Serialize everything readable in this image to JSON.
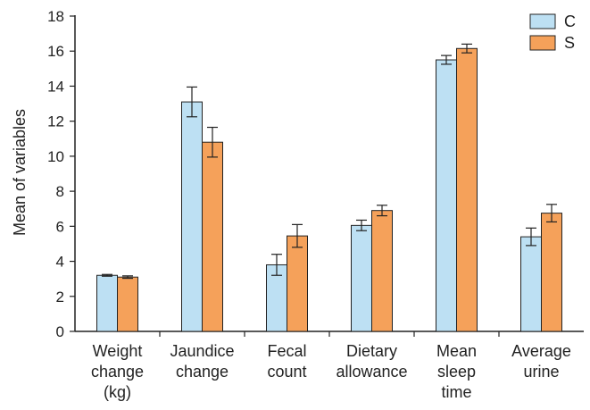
{
  "chart_data": {
    "type": "bar",
    "ylabel": "Mean of variables",
    "ylim": [
      0,
      18
    ],
    "yticks": [
      0,
      2,
      4,
      6,
      8,
      10,
      12,
      14,
      16,
      18
    ],
    "categories": [
      [
        "Weight",
        "change",
        "(kg)"
      ],
      [
        "Jaundice",
        "change"
      ],
      [
        "Fecal",
        "count"
      ],
      [
        "Dietary",
        "allowance"
      ],
      [
        "Mean",
        "sleep",
        "time"
      ],
      [
        "Average",
        "urine"
      ]
    ],
    "series": [
      {
        "name": "C",
        "color": "#bde0f3",
        "values": [
          3.2,
          13.1,
          3.8,
          6.05,
          15.5,
          5.4
        ],
        "errors": [
          0.05,
          0.85,
          0.6,
          0.3,
          0.25,
          0.5
        ]
      },
      {
        "name": "S",
        "color": "#f5a15a",
        "values": [
          3.1,
          10.8,
          5.45,
          6.9,
          16.15,
          6.75
        ],
        "errors": [
          0.07,
          0.85,
          0.65,
          0.3,
          0.25,
          0.5
        ]
      }
    ],
    "legend_position": "top-right",
    "grid": false
  }
}
